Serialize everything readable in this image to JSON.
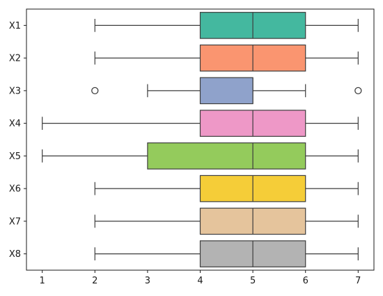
{
  "chart_data": {
    "type": "boxplot",
    "orientation": "horizontal",
    "title": "",
    "xlabel": "",
    "ylabel": "",
    "xlim": [
      0.7,
      7.3
    ],
    "x_ticks": [
      1,
      2,
      3,
      4,
      5,
      6,
      7
    ],
    "x_tick_labels": [
      "1",
      "2",
      "3",
      "4",
      "5",
      "6",
      "7"
    ],
    "grid": false,
    "legend": "none",
    "categories": [
      "X1",
      "X2",
      "X3",
      "X4",
      "X5",
      "X6",
      "X7",
      "X8"
    ],
    "boxes": [
      {
        "label": "X1",
        "whisker_low": 2,
        "q1": 4,
        "median": 5,
        "q3": 6,
        "whisker_high": 7,
        "outliers": [],
        "color": "#44b89f"
      },
      {
        "label": "X2",
        "whisker_low": 2,
        "q1": 4,
        "median": 5,
        "q3": 6,
        "whisker_high": 7,
        "outliers": [],
        "color": "#fa9570"
      },
      {
        "label": "X3",
        "whisker_low": 3,
        "q1": 4,
        "median": 5,
        "q3": 5,
        "whisker_high": 6,
        "outliers": [
          2,
          7
        ],
        "color": "#8fa2cb"
      },
      {
        "label": "X4",
        "whisker_low": 1,
        "q1": 4,
        "median": 5,
        "q3": 6,
        "whisker_high": 7,
        "outliers": [],
        "color": "#ee98c7"
      },
      {
        "label": "X5",
        "whisker_low": 1,
        "q1": 3,
        "median": 5,
        "q3": 6,
        "whisker_high": 7,
        "outliers": [],
        "color": "#94cb5c"
      },
      {
        "label": "X6",
        "whisker_low": 2,
        "q1": 4,
        "median": 5,
        "q3": 6,
        "whisker_high": 7,
        "outliers": [],
        "color": "#f5cd38"
      },
      {
        "label": "X7",
        "whisker_low": 2,
        "q1": 4,
        "median": 5,
        "q3": 6,
        "whisker_high": 7,
        "outliers": [],
        "color": "#e5c49c"
      },
      {
        "label": "X8",
        "whisker_low": 2,
        "q1": 4,
        "median": 5,
        "q3": 6,
        "whisker_high": 7,
        "outliers": [],
        "color": "#b3b3b3"
      }
    ]
  }
}
